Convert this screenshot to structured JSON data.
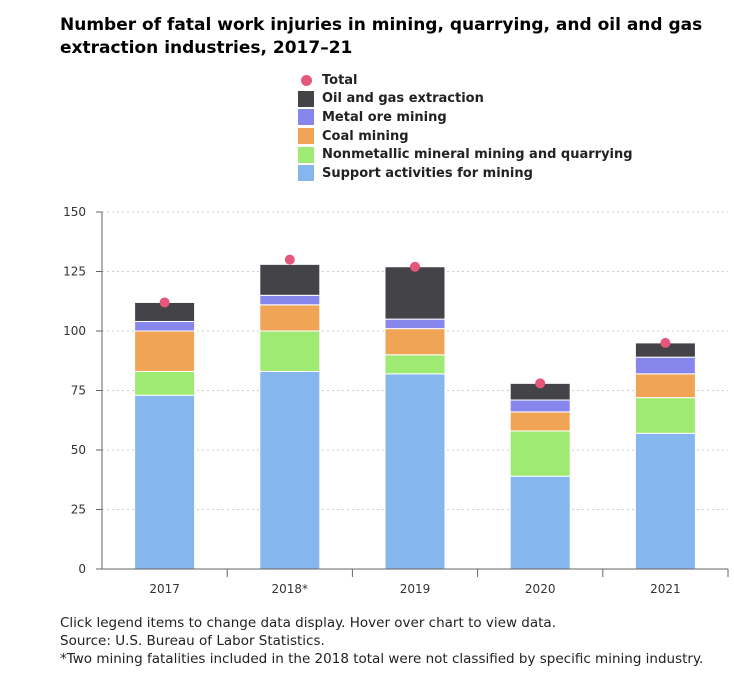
{
  "chart_data": {
    "type": "bar",
    "stacked": true,
    "title": "Number of fatal work injuries in mining, quarrying, and oil and gas extraction industries, 2017–21",
    "categories": [
      "2017",
      "2018*",
      "2019",
      "2020",
      "2021"
    ],
    "ylim": [
      0,
      150
    ],
    "yticks": [
      0,
      25,
      50,
      75,
      100,
      125,
      150
    ],
    "grid": true,
    "legend_position": "top",
    "series": [
      {
        "name": "Support activities for mining",
        "color": "#86b6ee",
        "values": [
          73,
          83,
          82,
          39,
          57
        ]
      },
      {
        "name": "Nonmetallic mineral mining and quarrying",
        "color": "#9eea72",
        "values": [
          10,
          17,
          8,
          19,
          15
        ]
      },
      {
        "name": "Coal mining",
        "color": "#f0a556",
        "values": [
          17,
          11,
          11,
          8,
          10
        ]
      },
      {
        "name": "Metal ore mining",
        "color": "#8786ec",
        "values": [
          4,
          4,
          4,
          5,
          7
        ]
      },
      {
        "name": "Oil and gas extraction",
        "color": "#434348",
        "values": [
          8,
          13,
          22,
          7,
          6
        ]
      }
    ],
    "total": {
      "name": "Total",
      "color": "#e4577a",
      "values": [
        112,
        130,
        127,
        78,
        95
      ]
    }
  },
  "notes": [
    "Click legend items to change data display. Hover over chart to view data.",
    "Source: U.S. Bureau of Labor Statistics.",
    "*Two mining fatalities included in the 2018 total were not classified by specific mining industry."
  ]
}
